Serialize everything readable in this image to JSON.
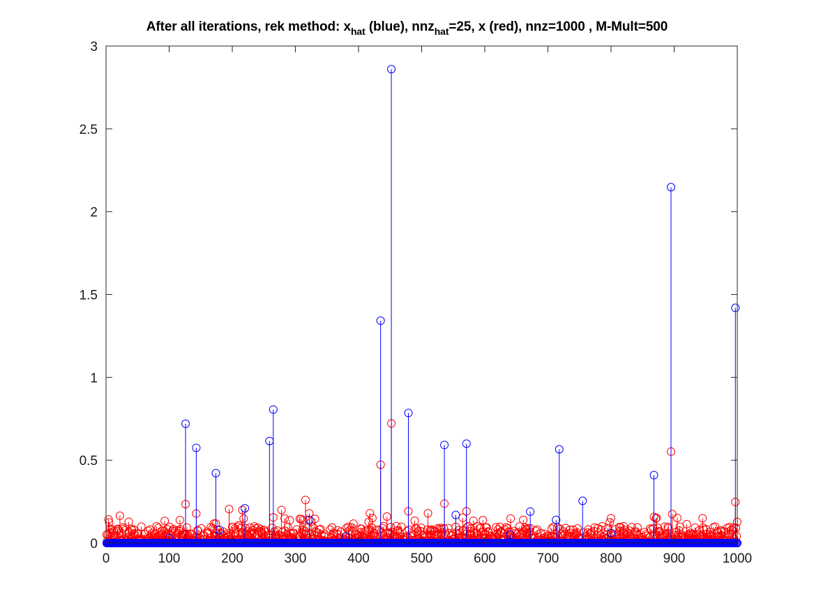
{
  "chart_data": {
    "type": "stem",
    "title": {
      "part1": "After all iterations, rek method: x",
      "sub1": "hat",
      "part2": " (blue), nnz",
      "sub2": "hat",
      "part3": "=25, x (red), nnz=1000 , M-Mult=500"
    },
    "xlim": [
      0,
      1000
    ],
    "ylim": [
      0,
      3
    ],
    "xticks": [
      "0",
      "100",
      "200",
      "300",
      "400",
      "500",
      "600",
      "700",
      "800",
      "900",
      "1000"
    ],
    "yticks": [
      "0",
      "0.5",
      "1",
      "1.5",
      "2",
      "2.5",
      "3"
    ],
    "grid": false,
    "colors": {
      "x_hat": "#0000ff",
      "x": "#ff0000",
      "axes": "#262626"
    },
    "series": [
      {
        "name": "x_hat",
        "color": "blue",
        "nonzero_points": [
          [
            126,
            0.72
          ],
          [
            143,
            0.575
          ],
          [
            174,
            0.422
          ],
          [
            180,
            0.08
          ],
          [
            220,
            0.21
          ],
          [
            259,
            0.616
          ],
          [
            265,
            0.806
          ],
          [
            322,
            0.14
          ],
          [
            435,
            1.342
          ],
          [
            452,
            2.86
          ],
          [
            479,
            0.785
          ],
          [
            536,
            0.592
          ],
          [
            554,
            0.17
          ],
          [
            571,
            0.6
          ],
          [
            672,
            0.19
          ],
          [
            713,
            0.14
          ],
          [
            718,
            0.566
          ],
          [
            755,
            0.255
          ],
          [
            868,
            0.41
          ],
          [
            895,
            2.148
          ],
          [
            997,
            1.42
          ],
          [
            640,
            0.05
          ],
          [
            800,
            0.06
          ],
          [
            380,
            0.04
          ],
          [
            100,
            0.03
          ]
        ]
      },
      {
        "name": "x",
        "color": "red",
        "points": [],
        "notable_points": [
          [
            5,
            0.125
          ],
          [
            22,
            0.165
          ],
          [
            126,
            0.235
          ],
          [
            143,
            0.178
          ],
          [
            195,
            0.205
          ],
          [
            216,
            0.2
          ],
          [
            265,
            0.155
          ],
          [
            278,
            0.2
          ],
          [
            316,
            0.26
          ],
          [
            322,
            0.18
          ],
          [
            418,
            0.18
          ],
          [
            435,
            0.473
          ],
          [
            445,
            0.16
          ],
          [
            452,
            0.722
          ],
          [
            479,
            0.192
          ],
          [
            510,
            0.18
          ],
          [
            536,
            0.238
          ],
          [
            571,
            0.192
          ],
          [
            800,
            0.15
          ],
          [
            868,
            0.158
          ],
          [
            895,
            0.552
          ],
          [
            897,
            0.175
          ],
          [
            945,
            0.15
          ],
          [
            997,
            0.248
          ],
          [
            1000,
            0.128
          ]
        ]
      }
    ]
  }
}
